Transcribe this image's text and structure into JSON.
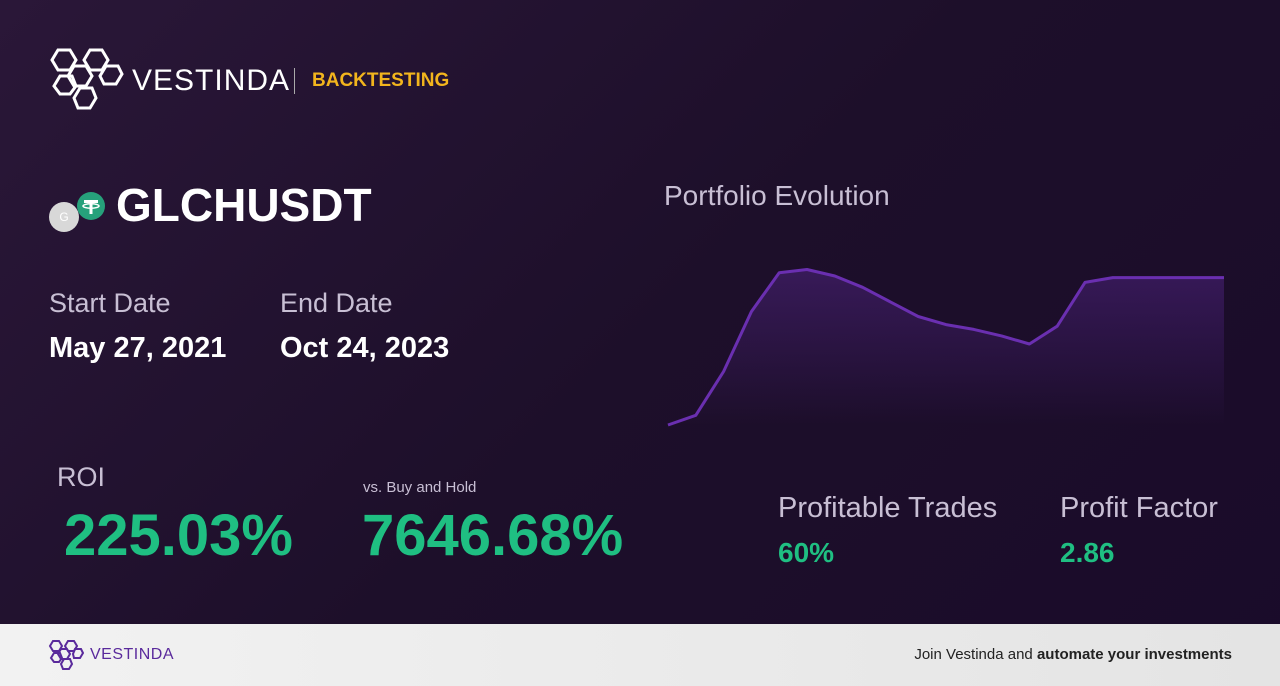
{
  "header": {
    "brand": "VESTINDA",
    "section": "BACKTESTING"
  },
  "pair": {
    "icon_letter": "G",
    "symbol": "GLCHUSDT"
  },
  "dates": {
    "start_label": "Start Date",
    "start_value": "May 27, 2021",
    "end_label": "End Date",
    "end_value": "Oct 24, 2023"
  },
  "chart_data": {
    "type": "line",
    "title": "Portfolio Evolution",
    "color": "#6a2fb0",
    "values": [
      0,
      6,
      33,
      70,
      94,
      96,
      92,
      85,
      76,
      67,
      62,
      59,
      55,
      50,
      61,
      88,
      91,
      91,
      91,
      91,
      91
    ],
    "ylim": [
      0,
      100
    ]
  },
  "metrics": {
    "roi": {
      "label": "ROI",
      "value": "225.03%"
    },
    "buy_hold": {
      "label": "vs. Buy and Hold",
      "value": "7646.68%"
    },
    "profitable_trades": {
      "label": "Profitable Trades",
      "value": "60%"
    },
    "profit_factor": {
      "label": "Profit Factor",
      "value": "2.86"
    }
  },
  "footer": {
    "brand": "VESTINDA",
    "cta_start": "Join Vestinda and",
    "cta_bold": "automate your investments"
  }
}
